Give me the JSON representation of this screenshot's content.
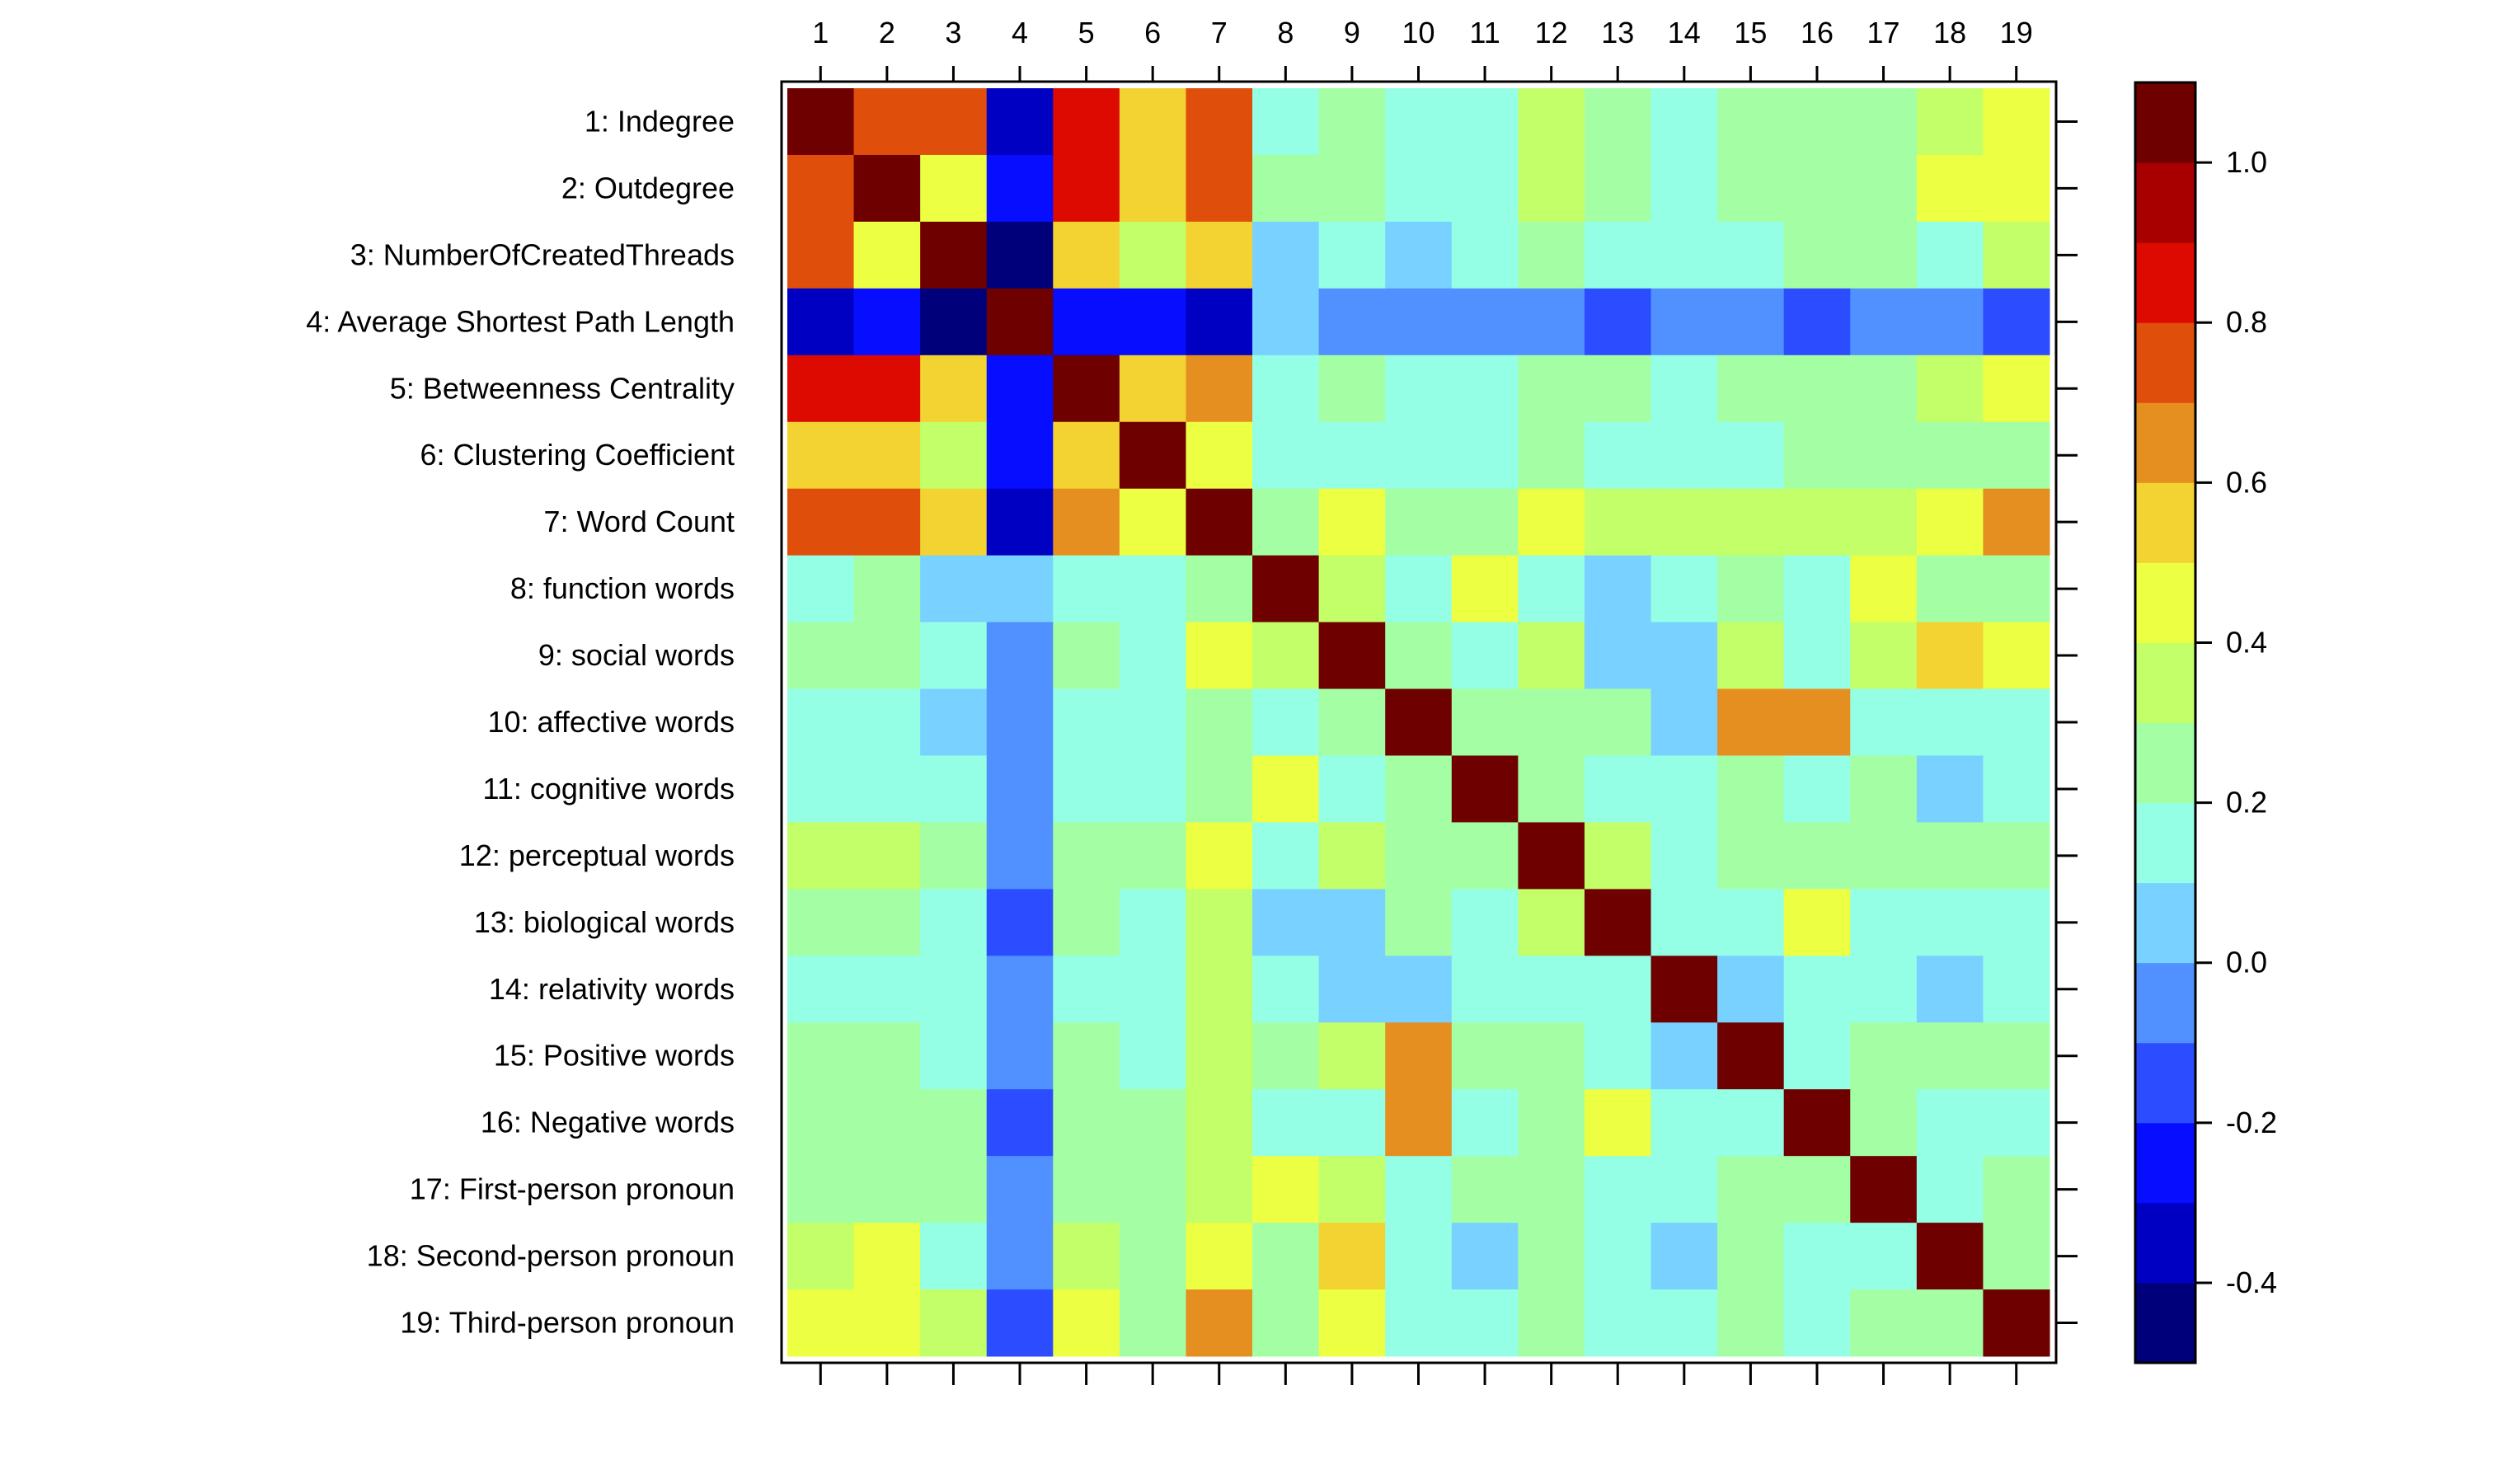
{
  "chart_data": {
    "type": "heatmap",
    "title": "",
    "row_labels": [
      "1: Indegree",
      "2: Outdegree",
      "3: NumberOfCreatedThreads",
      "4: Average Shortest Path Length",
      "5: Betweenness Centrality",
      "6: Clustering Coefficient",
      "7: Word Count",
      "8: function words",
      "9: social words",
      "10: affective words",
      "11: cognitive words",
      "12: perceptual words",
      "13: biological words",
      "14: relativity words",
      "15: Positive words",
      "16: Negative words",
      "17: First-person pronoun",
      "18: Second-person pronoun",
      "19: Third-person pronoun"
    ],
    "col_labels": [
      "1",
      "2",
      "3",
      "4",
      "5",
      "6",
      "7",
      "8",
      "9",
      "10",
      "11",
      "12",
      "13",
      "14",
      "15",
      "16",
      "17",
      "18",
      "19"
    ],
    "values": [
      [
        1,
        0.75,
        0.75,
        -0.35,
        0.85,
        0.55,
        0.75,
        0.15,
        0.25,
        0.15,
        0.15,
        0.35,
        0.25,
        0.15,
        0.25,
        0.25,
        0.25,
        0.35,
        0.45
      ],
      [
        0.75,
        1,
        0.45,
        -0.25,
        0.85,
        0.55,
        0.75,
        0.25,
        0.25,
        0.15,
        0.15,
        0.35,
        0.25,
        0.15,
        0.25,
        0.25,
        0.25,
        0.45,
        0.45
      ],
      [
        0.75,
        0.45,
        1,
        -0.45,
        0.55,
        0.35,
        0.55,
        0.05,
        0.15,
        0.05,
        0.15,
        0.25,
        0.15,
        0.15,
        0.15,
        0.25,
        0.25,
        0.15,
        0.35
      ],
      [
        -0.35,
        -0.25,
        -0.45,
        1,
        -0.25,
        -0.25,
        -0.35,
        0.05,
        -0.05,
        -0.05,
        -0.05,
        -0.05,
        -0.15,
        -0.05,
        -0.05,
        -0.15,
        -0.05,
        -0.05,
        -0.15
      ],
      [
        0.85,
        0.85,
        0.55,
        -0.25,
        1,
        0.55,
        0.65,
        0.15,
        0.25,
        0.15,
        0.15,
        0.25,
        0.25,
        0.15,
        0.25,
        0.25,
        0.25,
        0.35,
        0.45
      ],
      [
        0.55,
        0.55,
        0.35,
        -0.25,
        0.55,
        1,
        0.45,
        0.15,
        0.15,
        0.15,
        0.15,
        0.25,
        0.15,
        0.15,
        0.15,
        0.25,
        0.25,
        0.25,
        0.25
      ],
      [
        0.75,
        0.75,
        0.55,
        -0.35,
        0.65,
        0.45,
        1,
        0.25,
        0.45,
        0.25,
        0.25,
        0.45,
        0.35,
        0.35,
        0.35,
        0.35,
        0.35,
        0.45,
        0.65
      ],
      [
        0.15,
        0.25,
        0.05,
        0.05,
        0.15,
        0.15,
        0.25,
        1,
        0.35,
        0.15,
        0.45,
        0.15,
        0.05,
        0.15,
        0.25,
        0.15,
        0.45,
        0.25,
        0.25
      ],
      [
        0.25,
        0.25,
        0.15,
        -0.05,
        0.25,
        0.15,
        0.45,
        0.35,
        1,
        0.25,
        0.15,
        0.35,
        0.05,
        0.05,
        0.35,
        0.15,
        0.35,
        0.55,
        0.45
      ],
      [
        0.15,
        0.15,
        0.05,
        -0.05,
        0.15,
        0.15,
        0.25,
        0.15,
        0.25,
        1,
        0.25,
        0.25,
        0.25,
        0.05,
        0.65,
        0.65,
        0.15,
        0.15,
        0.15
      ],
      [
        0.15,
        0.15,
        0.15,
        -0.05,
        0.15,
        0.15,
        0.25,
        0.45,
        0.15,
        0.25,
        1,
        0.25,
        0.15,
        0.15,
        0.25,
        0.15,
        0.25,
        0.05,
        0.15
      ],
      [
        0.35,
        0.35,
        0.25,
        -0.05,
        0.25,
        0.25,
        0.45,
        0.15,
        0.35,
        0.25,
        0.25,
        1,
        0.35,
        0.15,
        0.25,
        0.25,
        0.25,
        0.25,
        0.25
      ],
      [
        0.25,
        0.25,
        0.15,
        -0.15,
        0.25,
        0.15,
        0.35,
        0.05,
        0.05,
        0.25,
        0.15,
        0.35,
        1,
        0.15,
        0.15,
        0.45,
        0.15,
        0.15,
        0.15
      ],
      [
        0.15,
        0.15,
        0.15,
        -0.05,
        0.15,
        0.15,
        0.35,
        0.15,
        0.05,
        0.05,
        0.15,
        0.15,
        0.15,
        1,
        0.05,
        0.15,
        0.15,
        0.05,
        0.15
      ],
      [
        0.25,
        0.25,
        0.15,
        -0.05,
        0.25,
        0.15,
        0.35,
        0.25,
        0.35,
        0.65,
        0.25,
        0.25,
        0.15,
        0.05,
        1,
        0.15,
        0.25,
        0.25,
        0.25
      ],
      [
        0.25,
        0.25,
        0.25,
        -0.15,
        0.25,
        0.25,
        0.35,
        0.15,
        0.15,
        0.65,
        0.15,
        0.25,
        0.45,
        0.15,
        0.15,
        1,
        0.25,
        0.15,
        0.15
      ],
      [
        0.25,
        0.25,
        0.25,
        -0.05,
        0.25,
        0.25,
        0.35,
        0.45,
        0.35,
        0.15,
        0.25,
        0.25,
        0.15,
        0.15,
        0.25,
        0.25,
        1,
        0.15,
        0.25
      ],
      [
        0.35,
        0.45,
        0.15,
        -0.05,
        0.35,
        0.25,
        0.45,
        0.25,
        0.55,
        0.15,
        0.05,
        0.25,
        0.15,
        0.05,
        0.25,
        0.15,
        0.15,
        1,
        0.25
      ],
      [
        0.45,
        0.45,
        0.35,
        -0.15,
        0.45,
        0.25,
        0.65,
        0.25,
        0.45,
        0.15,
        0.15,
        0.25,
        0.15,
        0.15,
        0.25,
        0.15,
        0.25,
        0.25,
        1
      ]
    ],
    "colorbar": {
      "range": [
        -0.5,
        1.1
      ],
      "step": 0.1,
      "ticks": [
        1.0,
        0.8,
        0.6,
        0.4,
        0.2,
        0.0,
        -0.2,
        -0.4
      ],
      "tick_labels": [
        "1.0",
        "0.8",
        "0.6",
        "0.4",
        "0.2",
        "0.0",
        "-0.2",
        "-0.4"
      ],
      "colors": [
        "#00007a",
        "#0000c3",
        "#070dff",
        "#2c4dff",
        "#5090ff",
        "#79d1ff",
        "#94ffe4",
        "#a4ffa4",
        "#c3ff68",
        "#ecff43",
        "#f3d331",
        "#e68f21",
        "#e04e0c",
        "#dc0a00",
        "#a80000",
        "#6e0000"
      ]
    },
    "legend": "right"
  }
}
